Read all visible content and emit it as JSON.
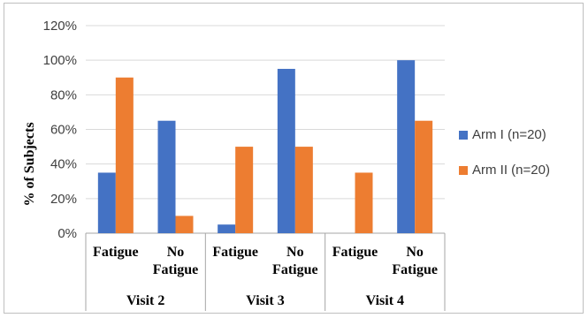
{
  "chart_data": {
    "type": "bar",
    "ylabel": "% of Subjects",
    "ylim": [
      0,
      120
    ],
    "yticks": [
      "0%",
      "20%",
      "40%",
      "60%",
      "80%",
      "100%",
      "120%"
    ],
    "grid": true,
    "legend_position": "right",
    "categories": [
      {
        "label_lines": [
          "Fatigue"
        ],
        "group": "Visit 2"
      },
      {
        "label_lines": [
          "No",
          "Fatigue"
        ],
        "group": "Visit 2"
      },
      {
        "label_lines": [
          "Fatigue"
        ],
        "group": "Visit 3"
      },
      {
        "label_lines": [
          "No",
          "Fatigue"
        ],
        "group": "Visit 3"
      },
      {
        "label_lines": [
          "Fatigue"
        ],
        "group": "Visit 4"
      },
      {
        "label_lines": [
          "No",
          "Fatigue"
        ],
        "group": "Visit 4"
      }
    ],
    "groups": [
      "Visit 2",
      "Visit 3",
      "Visit 4"
    ],
    "series": [
      {
        "name": "Arm I (n=20)",
        "color": "#4472c4",
        "values": [
          35,
          65,
          5,
          95,
          0,
          100
        ]
      },
      {
        "name": "Arm II (n=20)",
        "color": "#ed7d31",
        "values": [
          90,
          10,
          50,
          50,
          35,
          65
        ]
      }
    ]
  }
}
